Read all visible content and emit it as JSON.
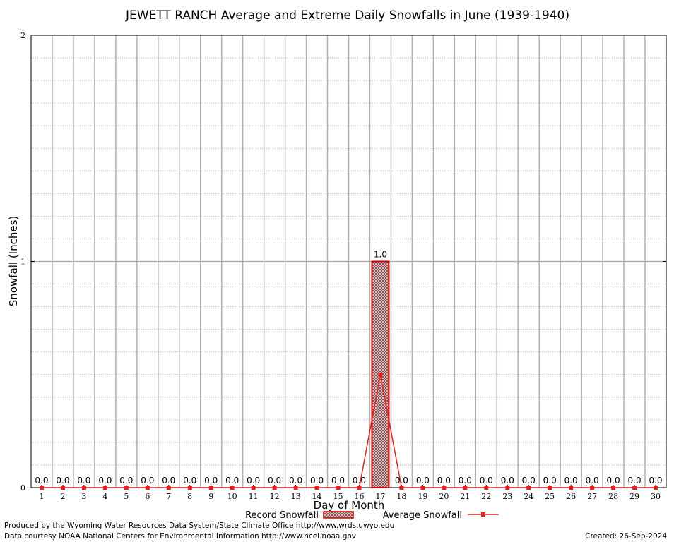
{
  "chart_data": {
    "type": "bar",
    "title": "JEWETT RANCH Average and Extreme Daily Snowfalls in June (1939-1940)",
    "xlabel": "Day of Month",
    "ylabel": "Snowfall (Inches)",
    "ylim": [
      0,
      2
    ],
    "yticks": [
      "0",
      "1",
      "2"
    ],
    "grid": true,
    "categories": [
      "1",
      "2",
      "3",
      "4",
      "5",
      "6",
      "7",
      "8",
      "9",
      "10",
      "11",
      "12",
      "13",
      "14",
      "15",
      "16",
      "17",
      "18",
      "19",
      "20",
      "21",
      "22",
      "23",
      "24",
      "25",
      "26",
      "27",
      "28",
      "29",
      "30"
    ],
    "series": [
      {
        "name": "Record Snowfall",
        "kind": "bar",
        "values": [
          0,
          0,
          0,
          0,
          0,
          0,
          0,
          0,
          0,
          0,
          0,
          0,
          0,
          0,
          0,
          0,
          1.0,
          0,
          0,
          0,
          0,
          0,
          0,
          0,
          0,
          0,
          0,
          0,
          0,
          0
        ],
        "labels": [
          "0.0",
          "0.0",
          "0.0",
          "0.0",
          "0.0",
          "0.0",
          "0.0",
          "0.0",
          "0.0",
          "0.0",
          "0.0",
          "0.0",
          "0.0",
          "0.0",
          "0.0",
          "0.0",
          "1.0",
          "0.0",
          "0.0",
          "0.0",
          "0.0",
          "0.0",
          "0.0",
          "0.0",
          "0.0",
          "0.0",
          "0.0",
          "0.0",
          "0.0",
          "0.0"
        ]
      },
      {
        "name": "Average Snowfall",
        "kind": "line",
        "values": [
          0,
          0,
          0,
          0,
          0,
          0,
          0,
          0,
          0,
          0,
          0,
          0,
          0,
          0,
          0,
          0,
          0.5,
          0,
          0,
          0,
          0,
          0,
          0,
          0,
          0,
          0,
          0,
          0,
          0,
          0
        ]
      }
    ],
    "colors": {
      "bar_fill": "#c8a8a8",
      "bar_stroke": "#cc0000",
      "line": "#dd2222",
      "grid": "#b0b0b0"
    },
    "legend": {
      "placement": "bottom-center",
      "record_label": "Record Snowfall",
      "average_label": "Average Snowfall"
    }
  },
  "footer": {
    "produced_by": "Produced by the Wyoming Water Resources Data System/State Climate Office http://www.wrds.uwyo.edu",
    "courtesy": "Data courtesy NOAA National Centers for Environmental Information http://www.ncei.noaa.gov",
    "created": "Created:  26-Sep-2024"
  }
}
